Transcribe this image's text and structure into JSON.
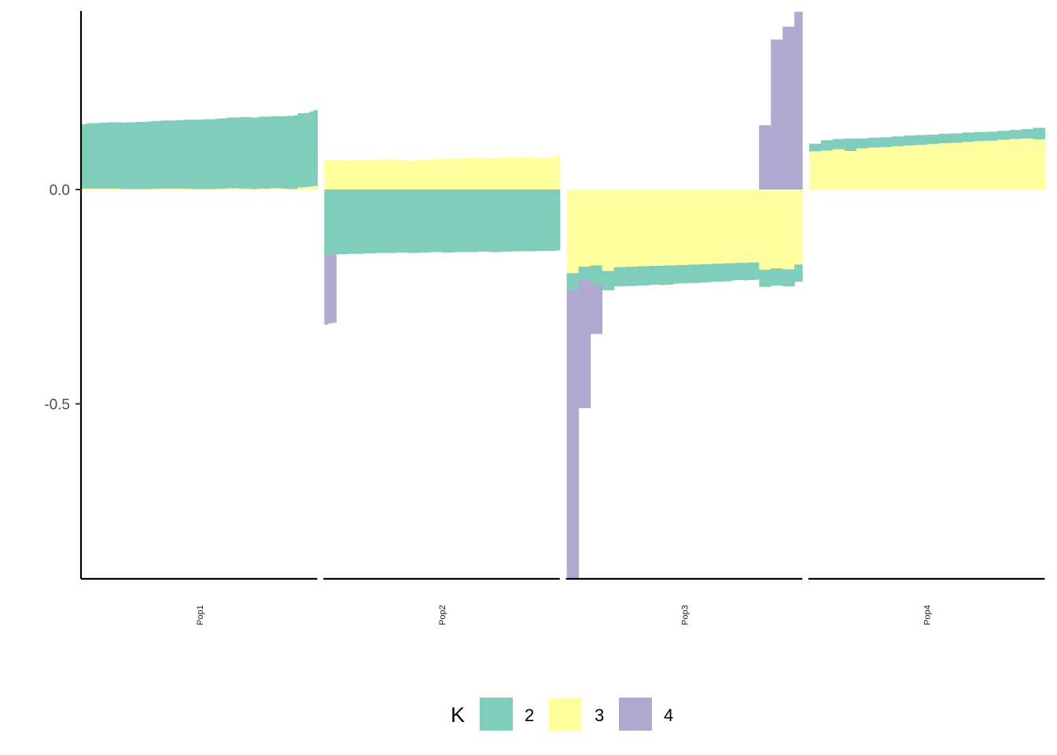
{
  "chart_data": {
    "type": "bar",
    "subtype": "stacked-diverging-faceted",
    "title": "",
    "xlabel": "",
    "ylabel": "",
    "ylim": [
      -0.91,
      0.42
    ],
    "yticks": [
      0.0,
      -0.5
    ],
    "ytick_labels": [
      "0.0",
      "-0.5"
    ],
    "legend": {
      "title": "K",
      "position": "bottom",
      "entries": [
        {
          "key": "2",
          "label": "2",
          "color": "#7FCDBB"
        },
        {
          "key": "3",
          "label": "3",
          "color": "#FFFFA0"
        },
        {
          "key": "4",
          "label": "4",
          "color": "#B0AAD0"
        }
      ]
    },
    "stack_order": [
      "3",
      "2",
      "4"
    ],
    "facets": [
      {
        "name": "Pop1",
        "series": {
          "2": [
            0.15,
            0.152,
            0.153,
            0.153,
            0.153,
            0.154,
            0.154,
            0.155,
            0.155,
            0.155,
            0.155,
            0.156,
            0.156,
            0.156,
            0.157,
            0.157,
            0.157,
            0.158,
            0.158,
            0.158,
            0.159,
            0.159,
            0.159,
            0.159,
            0.16,
            0.16,
            0.161,
            0.161,
            0.162,
            0.162,
            0.162,
            0.163,
            0.163,
            0.163,
            0.163,
            0.164,
            0.164,
            0.165,
            0.165,
            0.165,
            0.167,
            0.167,
            0.167,
            0.167,
            0.167,
            0.168,
            0.168,
            0.168,
            0.168,
            0.168,
            0.168,
            0.169,
            0.17,
            0.171,
            0.172,
            0.173,
            0.173,
            0.173,
            0.175,
            0.177
          ],
          "3": [
            0.002,
            0.002,
            0.002,
            0.002,
            0.002,
            0.002,
            0.002,
            0.002,
            0.002,
            0.002,
            0.001,
            0.001,
            0.001,
            0.001,
            0.001,
            0.001,
            0.001,
            0.001,
            0.002,
            0.002,
            0.002,
            0.002,
            0.002,
            0.002,
            0.002,
            0.002,
            0.002,
            0.002,
            0.001,
            0.001,
            0.001,
            0.001,
            0.001,
            0.001,
            0.002,
            0.002,
            0.002,
            0.003,
            0.003,
            0.003,
            0.002,
            0.002,
            0.002,
            0.001,
            0.001,
            0.002,
            0.002,
            0.002,
            0.003,
            0.003,
            0.003,
            0.002,
            0.002,
            0.001,
            0.001,
            0.005,
            0.005,
            0.006,
            0.007,
            0.008
          ],
          "4": [
            0,
            0,
            0,
            0,
            0,
            0,
            0,
            0,
            0,
            0,
            0,
            0,
            0,
            0,
            0,
            0,
            0,
            0,
            0,
            0,
            0,
            0,
            0,
            0,
            0,
            0,
            0,
            0,
            0,
            0,
            0,
            0,
            0,
            0,
            0,
            0,
            0,
            0,
            0,
            0,
            0,
            0,
            0,
            0,
            0,
            0,
            0,
            0,
            0,
            0,
            0,
            0,
            0,
            0,
            0,
            0,
            0,
            0,
            0,
            0
          ]
        }
      },
      {
        "name": "Pop2",
        "series": {
          "3": [
            0.07,
            0.069,
            0.07,
            0.068,
            0.068,
            0.068,
            0.068,
            0.068,
            0.069,
            0.069,
            0.069,
            0.07,
            0.07,
            0.07,
            0.07,
            0.071,
            0.071,
            0.071,
            0.069,
            0.069,
            0.069,
            0.067,
            0.067,
            0.067,
            0.069,
            0.069,
            0.069,
            0.071,
            0.071,
            0.071,
            0.072,
            0.072,
            0.072,
            0.072,
            0.072,
            0.072,
            0.074,
            0.074,
            0.074,
            0.074,
            0.074,
            0.074,
            0.073,
            0.073,
            0.073,
            0.075,
            0.075,
            0.075,
            0.075,
            0.075,
            0.075,
            0.076,
            0.076,
            0.076,
            0.074,
            0.074,
            0.074,
            0.076,
            0.076,
            0.079
          ],
          "2": [
            -0.155,
            -0.152,
            -0.151,
            -0.151,
            -0.151,
            -0.151,
            -0.15,
            -0.15,
            -0.15,
            -0.15,
            -0.149,
            -0.149,
            -0.149,
            -0.148,
            -0.148,
            -0.148,
            -0.148,
            -0.148,
            -0.147,
            -0.147,
            -0.147,
            -0.148,
            -0.148,
            -0.148,
            -0.147,
            -0.147,
            -0.147,
            -0.146,
            -0.146,
            -0.146,
            -0.147,
            -0.147,
            -0.147,
            -0.146,
            -0.146,
            -0.146,
            -0.146,
            -0.146,
            -0.146,
            -0.145,
            -0.145,
            -0.145,
            -0.146,
            -0.146,
            -0.146,
            -0.145,
            -0.145,
            -0.145,
            -0.144,
            -0.144,
            -0.144,
            -0.144,
            -0.144,
            -0.144,
            -0.143,
            -0.143,
            -0.143,
            -0.143,
            -0.143,
            -0.142
          ],
          "4": [
            -0.16,
            -0.16,
            -0.16,
            0,
            0,
            0,
            0,
            0,
            0,
            0,
            0,
            0,
            0,
            0,
            0,
            0,
            0,
            0,
            0,
            0,
            0,
            0,
            0,
            0,
            0,
            0,
            0,
            0,
            0,
            0,
            0,
            0,
            0,
            0,
            0,
            0,
            0,
            0,
            0,
            0,
            0,
            0,
            0,
            0,
            0,
            0,
            0,
            0,
            0,
            0,
            0,
            0,
            0,
            0,
            0,
            0,
            0,
            0,
            0,
            0
          ]
        }
      },
      {
        "name": "Pop3",
        "series": {
          "4": [
            -0.675,
            -0.675,
            -0.675,
            -0.3,
            -0.3,
            -0.3,
            -0.115,
            -0.115,
            -0.115,
            0,
            0,
            0,
            0,
            0,
            0,
            0,
            0,
            0,
            0,
            0,
            0,
            0,
            0,
            0,
            0,
            0,
            0,
            0,
            0,
            0,
            0,
            0,
            0,
            0,
            0,
            0,
            0,
            0,
            0,
            0,
            0,
            0,
            0,
            0,
            0,
            0,
            0,
            0,
            0,
            0.15,
            0.15,
            0.15,
            0.35,
            0.35,
            0.35,
            0.38,
            0.38,
            0.38,
            0.415,
            0.415
          ],
          "3": [
            -0.195,
            -0.195,
            -0.195,
            -0.18,
            -0.18,
            -0.18,
            -0.177,
            -0.177,
            -0.177,
            -0.19,
            -0.19,
            -0.19,
            -0.181,
            -0.181,
            -0.181,
            -0.18,
            -0.18,
            -0.18,
            -0.179,
            -0.179,
            -0.179,
            -0.178,
            -0.178,
            -0.178,
            -0.178,
            -0.177,
            -0.177,
            -0.177,
            -0.176,
            -0.176,
            -0.176,
            -0.175,
            -0.175,
            -0.175,
            -0.174,
            -0.174,
            -0.174,
            -0.173,
            -0.173,
            -0.173,
            -0.172,
            -0.172,
            -0.172,
            -0.171,
            -0.171,
            -0.171,
            -0.17,
            -0.17,
            -0.17,
            -0.187,
            -0.187,
            -0.187,
            -0.184,
            -0.184,
            -0.184,
            -0.186,
            -0.186,
            -0.186,
            -0.175,
            -0.175
          ],
          "2": [
            -0.04,
            -0.04,
            -0.04,
            -0.03,
            -0.03,
            -0.03,
            -0.045,
            -0.045,
            -0.045,
            -0.045,
            -0.045,
            -0.045,
            -0.045,
            -0.045,
            -0.045,
            -0.045,
            -0.045,
            -0.045,
            -0.045,
            -0.045,
            -0.045,
            -0.044,
            -0.044,
            -0.044,
            -0.045,
            -0.045,
            -0.045,
            -0.043,
            -0.043,
            -0.043,
            -0.043,
            -0.043,
            -0.043,
            -0.043,
            -0.043,
            -0.043,
            -0.042,
            -0.042,
            -0.042,
            -0.042,
            -0.042,
            -0.042,
            -0.04,
            -0.04,
            -0.04,
            -0.041,
            -0.041,
            -0.041,
            -0.04,
            -0.04,
            -0.04,
            -0.04,
            -0.04,
            -0.04,
            -0.04,
            -0.04,
            -0.04,
            -0.04,
            -0.04,
            -0.04
          ]
        }
      },
      {
        "name": "Pop4",
        "series": {
          "3": [
            0.089,
            0.089,
            0.089,
            0.091,
            0.091,
            0.091,
            0.094,
            0.094,
            0.094,
            0.09,
            0.09,
            0.09,
            0.096,
            0.096,
            0.096,
            0.098,
            0.098,
            0.098,
            0.099,
            0.099,
            0.099,
            0.101,
            0.101,
            0.101,
            0.103,
            0.103,
            0.103,
            0.104,
            0.104,
            0.104,
            0.106,
            0.106,
            0.106,
            0.108,
            0.108,
            0.108,
            0.109,
            0.109,
            0.109,
            0.111,
            0.111,
            0.111,
            0.113,
            0.113,
            0.113,
            0.114,
            0.114,
            0.114,
            0.116,
            0.116,
            0.116,
            0.118,
            0.118,
            0.118,
            0.119,
            0.119,
            0.119,
            0.117,
            0.117,
            0.117
          ],
          "2": [
            0.018,
            0.018,
            0.018,
            0.024,
            0.024,
            0.024,
            0.024,
            0.024,
            0.024,
            0.029,
            0.029,
            0.029,
            0.023,
            0.023,
            0.023,
            0.023,
            0.023,
            0.023,
            0.023,
            0.023,
            0.023,
            0.023,
            0.023,
            0.023,
            0.023,
            0.023,
            0.023,
            0.023,
            0.023,
            0.023,
            0.022,
            0.022,
            0.022,
            0.022,
            0.022,
            0.022,
            0.022,
            0.022,
            0.022,
            0.022,
            0.022,
            0.022,
            0.021,
            0.021,
            0.021,
            0.021,
            0.021,
            0.021,
            0.021,
            0.021,
            0.021,
            0.021,
            0.021,
            0.021,
            0.022,
            0.022,
            0.022,
            0.027,
            0.027,
            0.027
          ],
          "4": [
            0,
            0,
            0,
            0,
            0,
            0,
            0,
            0,
            0,
            0,
            0,
            0,
            0,
            0,
            0,
            0,
            0,
            0,
            0,
            0,
            0,
            0,
            0,
            0,
            0,
            0,
            0,
            0,
            0,
            0,
            0,
            0,
            0,
            0,
            0,
            0,
            0,
            0,
            0,
            0,
            0,
            0,
            0,
            0,
            0,
            0,
            0,
            0,
            0,
            0,
            0,
            0,
            0,
            0,
            0,
            0,
            0,
            0,
            0,
            0
          ]
        }
      }
    ]
  }
}
